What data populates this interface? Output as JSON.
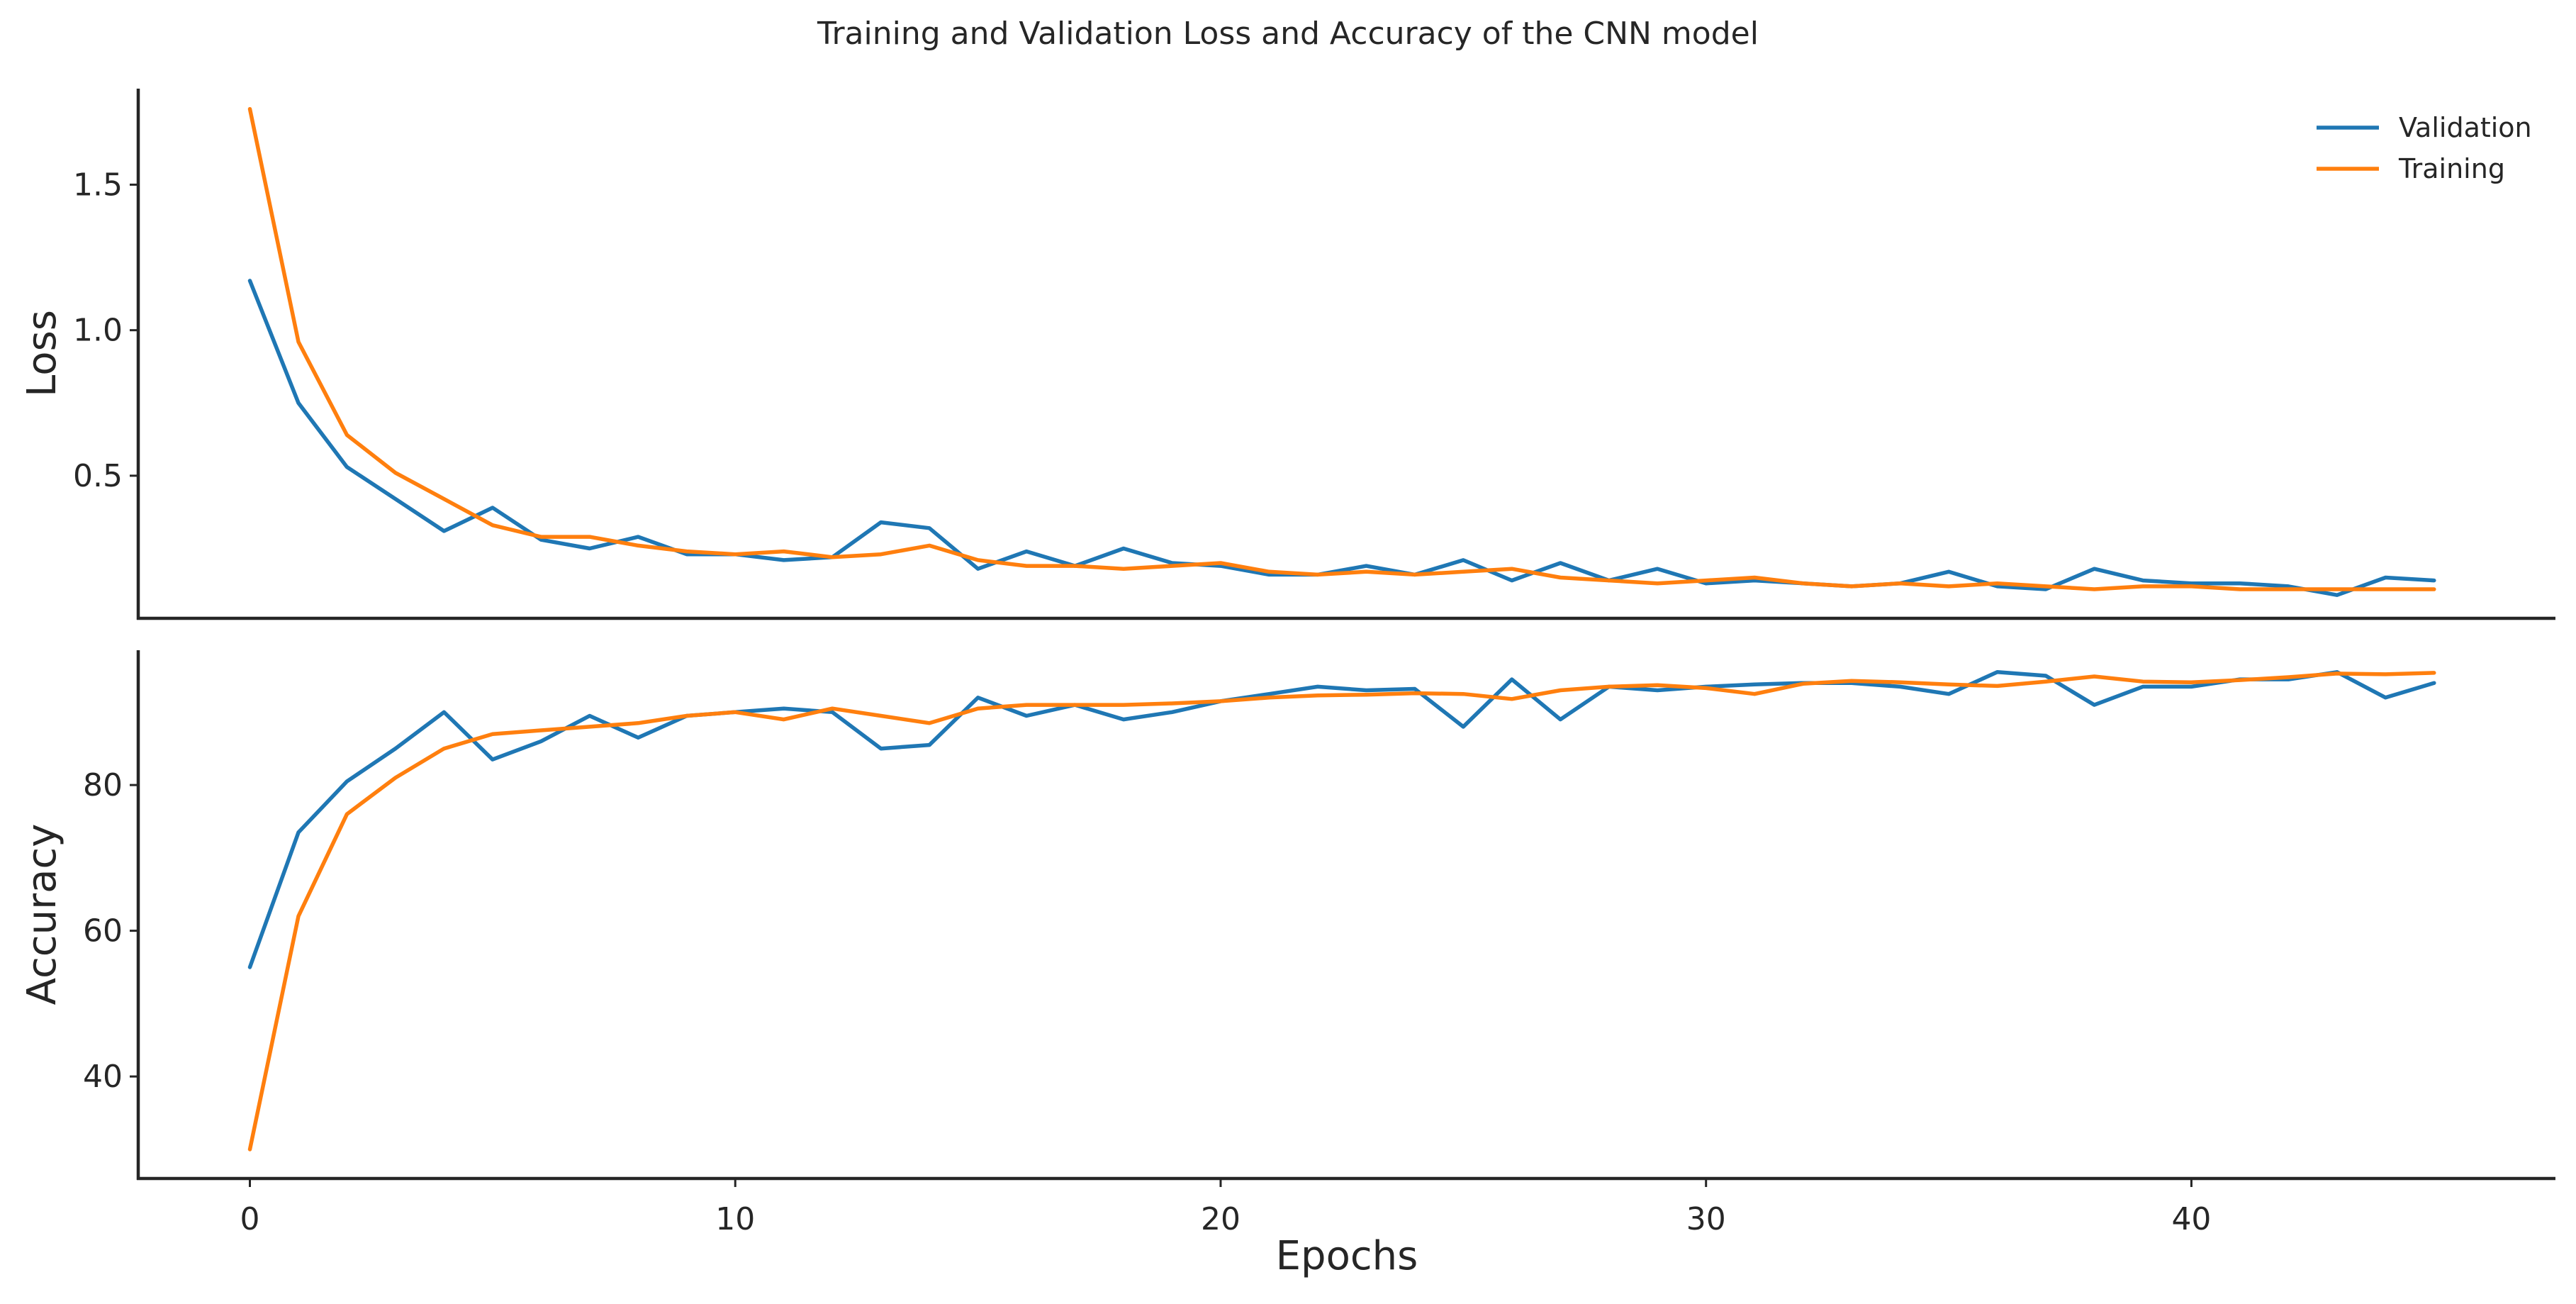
{
  "chart_data": {
    "type": "line",
    "title": "Training and Validation Loss and Accuracy of the CNN model",
    "xlabel": "Epochs",
    "x": [
      0,
      1,
      2,
      3,
      4,
      5,
      6,
      7,
      8,
      9,
      10,
      11,
      12,
      13,
      14,
      15,
      16,
      17,
      18,
      19,
      20,
      21,
      22,
      23,
      24,
      25,
      26,
      27,
      28,
      29,
      30,
      31,
      32,
      33,
      34,
      35,
      36,
      37,
      38,
      39,
      40,
      41,
      42,
      43,
      44,
      45
    ],
    "xlim": [
      -2.3,
      47.5
    ],
    "xticks": [
      0,
      10,
      20,
      30,
      40
    ],
    "legend": {
      "position": "top-right",
      "entries": [
        "Validation",
        "Training"
      ]
    },
    "colors": {
      "Validation": "#1f77b4",
      "Training": "#ff7f0e"
    },
    "grid": false,
    "panels": [
      {
        "id": "loss",
        "ylabel": "Loss",
        "ylim": [
          0.01,
          1.83
        ],
        "yticks": [
          0.5,
          1.0,
          1.5
        ],
        "ytick_labels": [
          "0.5",
          "1.0",
          "1.5"
        ],
        "series": [
          {
            "name": "Validation",
            "values": [
              1.17,
              0.75,
              0.53,
              0.42,
              0.31,
              0.39,
              0.28,
              0.25,
              0.29,
              0.23,
              0.23,
              0.21,
              0.22,
              0.34,
              0.32,
              0.18,
              0.24,
              0.19,
              0.25,
              0.2,
              0.19,
              0.16,
              0.16,
              0.19,
              0.16,
              0.21,
              0.14,
              0.2,
              0.14,
              0.18,
              0.13,
              0.14,
              0.13,
              0.12,
              0.13,
              0.17,
              0.12,
              0.11,
              0.18,
              0.14,
              0.13,
              0.13,
              0.12,
              0.09,
              0.15,
              0.14
            ]
          },
          {
            "name": "Training",
            "values": [
              1.76,
              0.96,
              0.64,
              0.51,
              0.42,
              0.33,
              0.29,
              0.29,
              0.26,
              0.24,
              0.23,
              0.24,
              0.22,
              0.23,
              0.26,
              0.21,
              0.19,
              0.19,
              0.18,
              0.19,
              0.2,
              0.17,
              0.16,
              0.17,
              0.16,
              0.17,
              0.18,
              0.15,
              0.14,
              0.13,
              0.14,
              0.15,
              0.13,
              0.12,
              0.13,
              0.12,
              0.13,
              0.12,
              0.11,
              0.12,
              0.12,
              0.11,
              0.11,
              0.11,
              0.11,
              0.11
            ]
          }
        ]
      },
      {
        "id": "accuracy",
        "ylabel": "Accuracy",
        "ylim": [
          26,
          98.5
        ],
        "yticks": [
          40,
          60,
          80
        ],
        "ytick_labels": [
          "40",
          "60",
          "80"
        ],
        "series": [
          {
            "name": "Validation",
            "values": [
              55,
              73.5,
              80.5,
              85,
              90,
              83.5,
              86,
              89.5,
              86.5,
              89.5,
              90,
              90.5,
              90,
              85,
              85.5,
              92,
              89.5,
              91,
              89,
              90,
              91.5,
              92.5,
              93.5,
              93,
              93.2,
              88,
              94.5,
              89,
              93.5,
              93,
              93.5,
              93.8,
              94,
              94,
              93.5,
              92.5,
              95.5,
              95,
              91,
              93.5,
              93.5,
              94.5,
              94.5,
              95.5,
              92,
              94
            ]
          },
          {
            "name": "Training",
            "values": [
              30,
              62,
              76,
              81,
              85,
              87,
              87.5,
              88,
              88.5,
              89.5,
              90,
              89,
              90.5,
              89.5,
              88.5,
              90.5,
              91,
              91,
              91,
              91.2,
              91.5,
              92,
              92.3,
              92.4,
              92.6,
              92.5,
              91.8,
              93,
              93.5,
              93.7,
              93.3,
              92.5,
              93.9,
              94.3,
              94.1,
              93.8,
              93.6,
              94.2,
              94.9,
              94.2,
              94.1,
              94.4,
              94.8,
              95.3,
              95.2,
              95.4
            ]
          }
        ]
      }
    ]
  }
}
